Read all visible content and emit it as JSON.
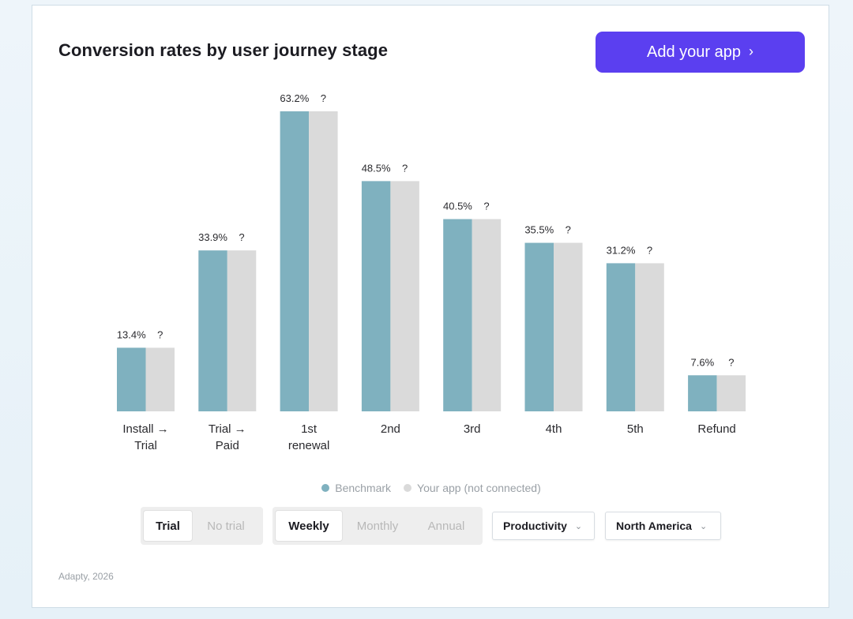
{
  "title": "Conversion rates by user journey stage",
  "cta": {
    "label": "Add your app",
    "chevron": "›"
  },
  "colors": {
    "benchmark": "#7fb1bf",
    "your_app": "#dadada",
    "accent": "#5b3ff0"
  },
  "chart_data": {
    "type": "bar",
    "title": "Conversion rates by user journey stage",
    "categories": [
      [
        "Install →",
        "Trial"
      ],
      [
        "Trial →",
        "Paid"
      ],
      [
        "1st",
        "renewal"
      ],
      [
        "2nd"
      ],
      [
        "3rd"
      ],
      [
        "4th"
      ],
      [
        "5th"
      ],
      [
        "Refund"
      ]
    ],
    "series": [
      {
        "name": "Benchmark",
        "values": [
          13.4,
          33.9,
          63.2,
          48.5,
          40.5,
          35.5,
          31.2,
          7.6
        ],
        "labels": [
          "13.4%",
          "33.9%",
          "63.2%",
          "48.5%",
          "40.5%",
          "35.5%",
          "31.2%",
          "7.6%"
        ]
      },
      {
        "name": "Your app (not connected)",
        "values": [
          13.4,
          33.9,
          63.2,
          48.5,
          40.5,
          35.5,
          31.2,
          7.6
        ],
        "labels": [
          "?",
          "?",
          "?",
          "?",
          "?",
          "?",
          "?",
          "?"
        ]
      }
    ],
    "ylim": [
      0,
      63.2
    ],
    "grid": false,
    "legend": "bottom-center"
  },
  "controls": {
    "trial_toggle": {
      "options": [
        "Trial",
        "No trial"
      ],
      "selected": "Trial"
    },
    "period_toggle": {
      "options": [
        "Weekly",
        "Monthly",
        "Annual"
      ],
      "selected": "Weekly"
    },
    "category_dropdown": {
      "value": "Productivity",
      "icon": "chevron-down-icon"
    },
    "region_dropdown": {
      "value": "North America",
      "icon": "chevron-down-icon"
    }
  },
  "footer": "Adapty, 2026"
}
